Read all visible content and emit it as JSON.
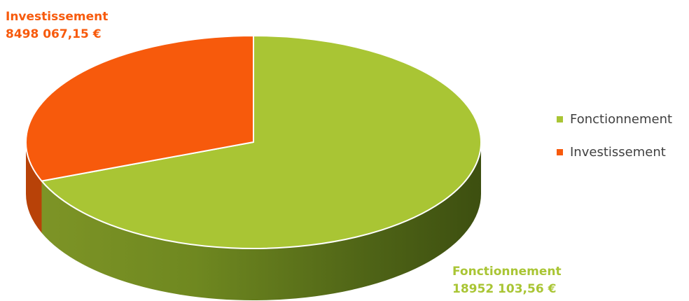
{
  "chart_data": {
    "type": "pie",
    "style": "3d",
    "categories": [
      "Fonctionnement",
      "Investissement"
    ],
    "values": [
      18952103.56,
      8498067.15
    ],
    "value_labels": [
      "18952 103,56 €",
      "8498 067,15 €"
    ],
    "colors": [
      "#a9c534",
      "#f75a0c"
    ],
    "legend": {
      "placement": "right",
      "entries": [
        "Fonctionnement",
        "Investissement"
      ]
    },
    "title": ""
  }
}
